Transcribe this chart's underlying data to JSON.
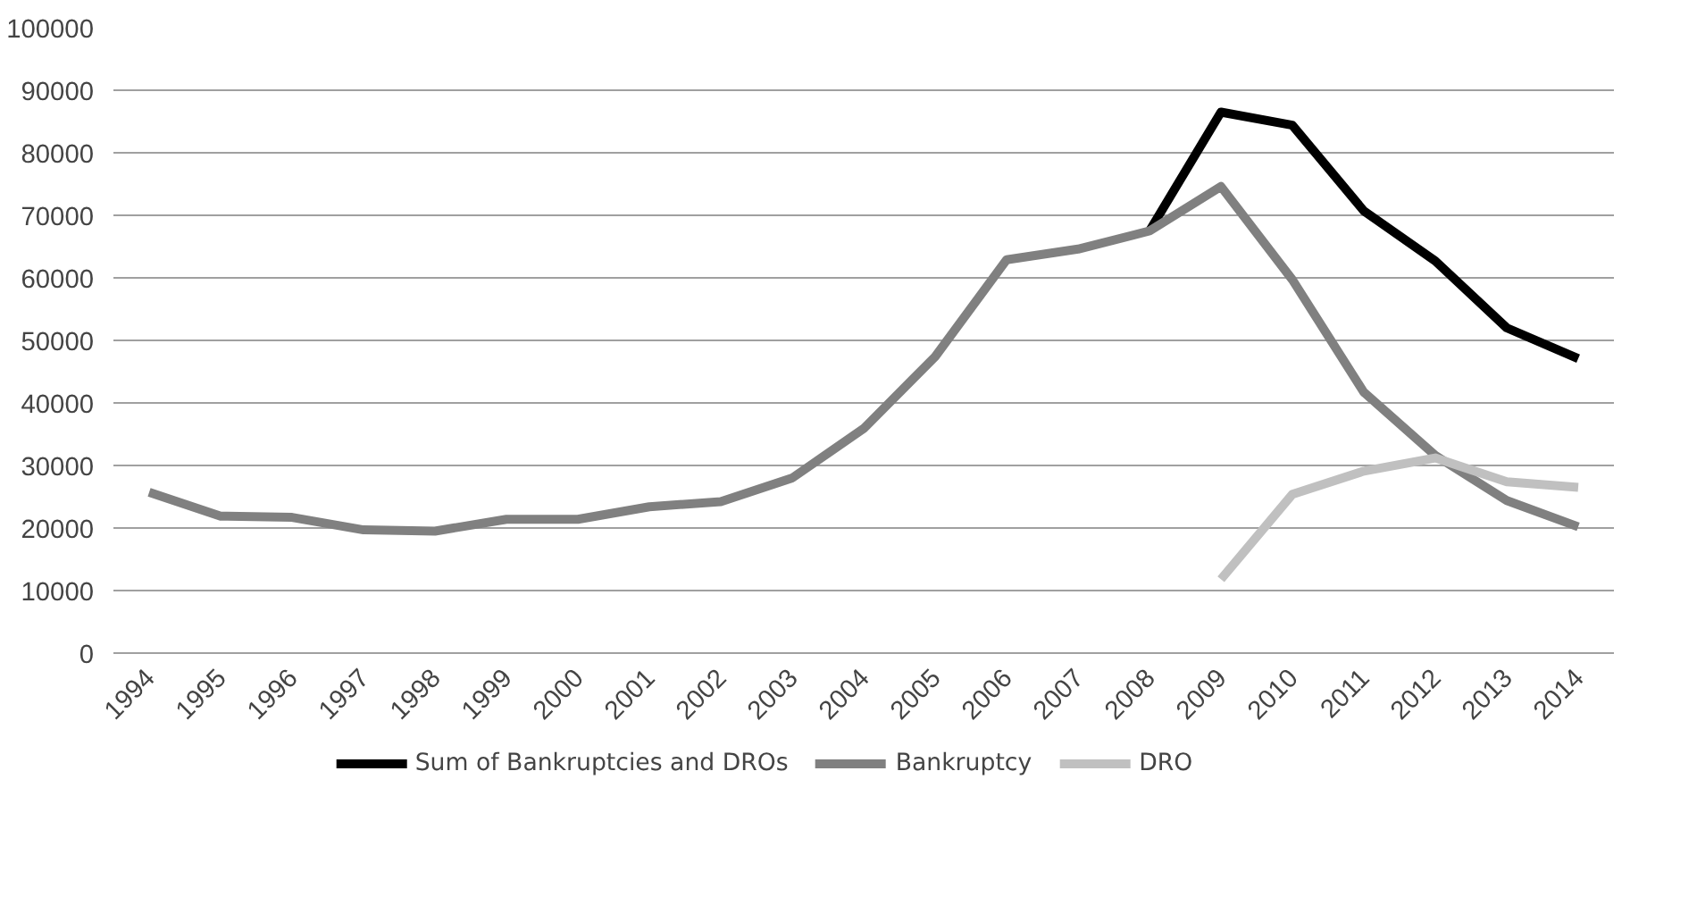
{
  "chart_data": {
    "type": "line",
    "categories": [
      "1994",
      "1995",
      "1996",
      "1997",
      "1998",
      "1999",
      "2000",
      "2001",
      "2002",
      "2003",
      "2004",
      "2005",
      "2006",
      "2007",
      "2008",
      "2009",
      "2010",
      "2011",
      "2012",
      "2013",
      "2014"
    ],
    "series": [
      {
        "name": "Sum of Bankruptcies and DROs",
        "color": "#000000",
        "values": [
          null,
          null,
          null,
          null,
          null,
          null,
          null,
          null,
          null,
          null,
          null,
          null,
          null,
          null,
          67500,
          86500,
          84400,
          70700,
          62700,
          52000,
          47100
        ]
      },
      {
        "name": "Bankruptcy",
        "color": "#808080",
        "values": [
          25700,
          21900,
          21700,
          19700,
          19500,
          21400,
          21400,
          23400,
          24200,
          28000,
          35900,
          47400,
          62900,
          64600,
          67500,
          74600,
          59700,
          41700,
          31600,
          24400,
          20200
        ]
      },
      {
        "name": "DRO",
        "color": "#c0c0c0",
        "values": [
          null,
          null,
          null,
          null,
          null,
          null,
          null,
          null,
          null,
          null,
          null,
          null,
          null,
          null,
          null,
          11800,
          25400,
          29100,
          31200,
          27400,
          26500
        ]
      }
    ],
    "ylim": [
      0,
      100000
    ],
    "yticks": [
      0,
      10000,
      20000,
      30000,
      40000,
      50000,
      60000,
      70000,
      80000,
      90000,
      100000
    ],
    "grid": "y",
    "legend": "bottom",
    "marker": "none",
    "line_style": "solid"
  }
}
